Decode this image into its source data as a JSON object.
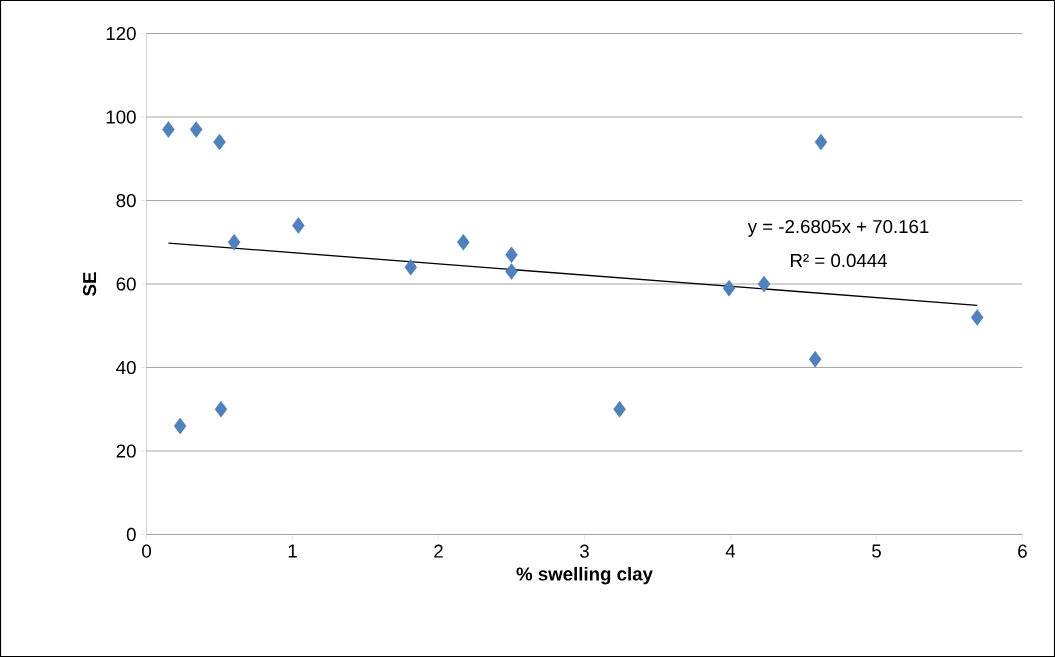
{
  "chart_data": {
    "type": "scatter",
    "xlabel": "% swelling clay",
    "ylabel": "SE",
    "annotations": [
      "y = -2.6805x + 70.161",
      "R² = 0.0444"
    ],
    "series": [
      {
        "color": "#4f81bd",
        "x": [
          0.15,
          0.34,
          0.5,
          0.6,
          1.04,
          1.81,
          2.17,
          2.5,
          2.5,
          3.99,
          4.23,
          4.62,
          4.58,
          5.69,
          0.23,
          0.51,
          3.24
        ],
        "values": [
          97,
          97,
          94,
          70,
          74,
          64,
          70,
          67,
          63,
          59,
          60,
          94,
          42,
          52,
          26,
          30,
          30
        ]
      },
      {
        "type": "line",
        "color": "#000000",
        "marker": "none",
        "x": [
          0.15,
          5.69
        ],
        "values": [
          69.8,
          54.9
        ]
      }
    ],
    "xlim": [
      0,
      6
    ],
    "ylim": [
      0,
      120
    ],
    "xticks": [
      0,
      1,
      2,
      3,
      4,
      5,
      6
    ],
    "yticks": [
      0,
      20,
      40,
      60,
      80,
      100,
      120
    ],
    "grid": "y",
    "marker": "diamond"
  }
}
